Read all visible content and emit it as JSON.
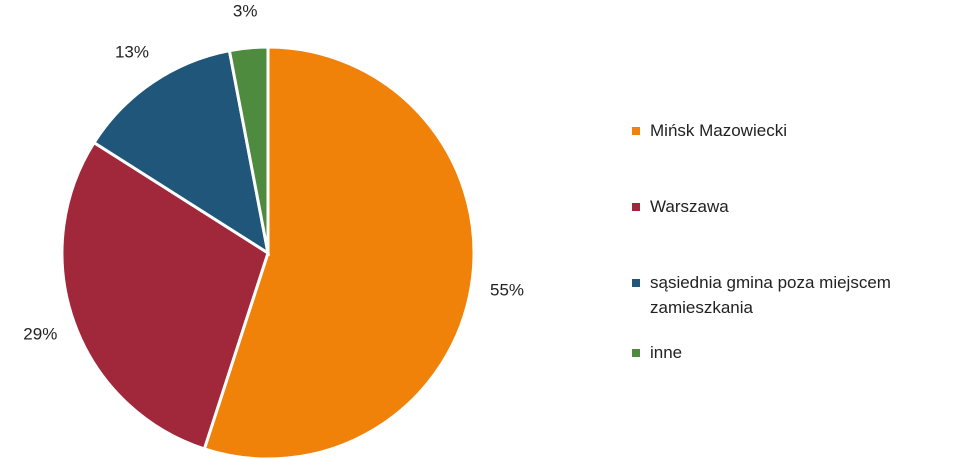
{
  "chart_data": {
    "type": "pie",
    "categories": [
      "Mińsk Mazowiecki",
      "Warszawa",
      "sąsiednia gmina poza miejscem zamieszkania",
      "inne"
    ],
    "values": [
      55,
      29,
      13,
      3
    ],
    "value_labels": [
      "55%",
      "29%",
      "13%",
      "3%"
    ],
    "colors": [
      "#f0820a",
      "#a0283a",
      "#1f5679",
      "#4e8b3f"
    ]
  }
}
